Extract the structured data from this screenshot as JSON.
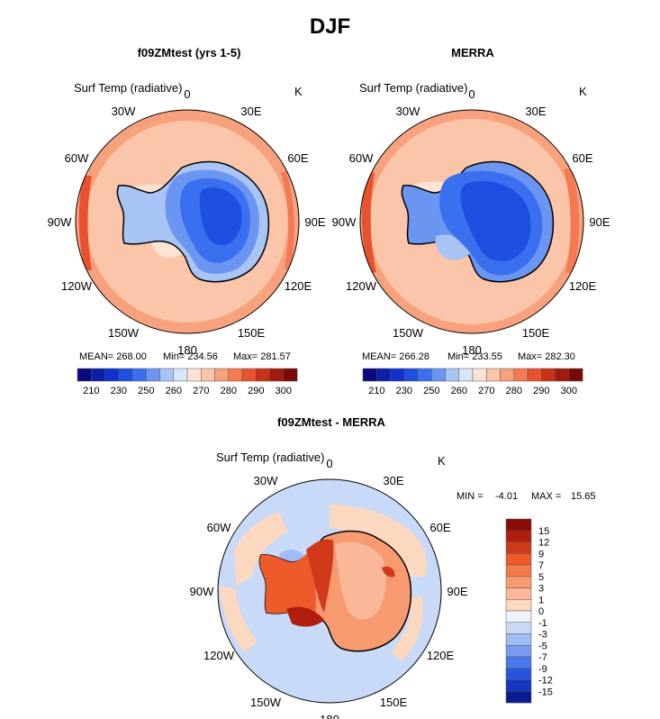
{
  "page": {
    "title": "DJF"
  },
  "panels": [
    {
      "title": "f09ZMtest (yrs 1-5)",
      "var_label": "Surf Temp (radiative)",
      "units": "K",
      "stats": {
        "mean": "MEAN= 268.00",
        "min": "Min= 234.56",
        "max": "Max= 281.57"
      }
    },
    {
      "title": "MERRA",
      "var_label": "Surf Temp (radiative)",
      "units": "K",
      "stats": {
        "mean": "MEAN= 266.28",
        "min": "Min= 233.55",
        "max": "Max= 282.30"
      }
    },
    {
      "title": "f09ZMtest - MERRA",
      "var_label": "Surf Temp (radiative)",
      "units": "K",
      "stats": {
        "min_label": "MIN =",
        "min": "-4.01",
        "max_label": "MAX =",
        "max": "15.65"
      }
    }
  ],
  "lon_labels": [
    "0",
    "30E",
    "60E",
    "90E",
    "120E",
    "150E",
    "180",
    "150W",
    "120W",
    "90W",
    "60W",
    "30W"
  ],
  "chart_data": [
    {
      "type": "heatmap",
      "title": "f09ZMtest (yrs 1-5)",
      "projection": "south-polar-stereographic",
      "variable": "Surf Temp (radiative)",
      "units": "K",
      "mean": 268.0,
      "min": 234.56,
      "max": 281.57,
      "colorbar": {
        "orientation": "horizontal",
        "tick_labels": [
          "210",
          "230",
          "250",
          "260",
          "270",
          "280",
          "290",
          "300"
        ],
        "colors": [
          "#0a0a80",
          "#0b1fa8",
          "#1230d0",
          "#1f4fe0",
          "#3a6ff0",
          "#6a96f2",
          "#a8c4f5",
          "#d8e6fa",
          "#fce4d4",
          "#fac5a8",
          "#f7a27c",
          "#f37a52",
          "#e8532e",
          "#c73218",
          "#a11a0e",
          "#7a0a06"
        ]
      }
    },
    {
      "type": "heatmap",
      "title": "MERRA",
      "projection": "south-polar-stereographic",
      "variable": "Surf Temp (radiative)",
      "units": "K",
      "mean": 266.28,
      "min": 233.55,
      "max": 282.3,
      "colorbar": {
        "orientation": "horizontal",
        "tick_labels": [
          "210",
          "230",
          "250",
          "260",
          "270",
          "280",
          "290",
          "300"
        ],
        "colors": [
          "#0a0a80",
          "#0b1fa8",
          "#1230d0",
          "#1f4fe0",
          "#3a6ff0",
          "#6a96f2",
          "#a8c4f5",
          "#d8e6fa",
          "#fce4d4",
          "#fac5a8",
          "#f7a27c",
          "#f37a52",
          "#e8532e",
          "#c73218",
          "#a11a0e",
          "#7a0a06"
        ]
      }
    },
    {
      "type": "heatmap",
      "title": "f09ZMtest - MERRA",
      "projection": "south-polar-stereographic",
      "variable": "Surf Temp (radiative)",
      "units": "K",
      "min": -4.01,
      "max": 15.65,
      "colorbar": {
        "orientation": "vertical",
        "tick_labels": [
          "15",
          "12",
          "9",
          "7",
          "5",
          "3",
          "1",
          "0",
          "-1",
          "-3",
          "-5",
          "-7",
          "-9",
          "-12",
          "-15"
        ],
        "colors": [
          "#8a0c06",
          "#b01e0e",
          "#d03a1a",
          "#ef5a2a",
          "#f47a4a",
          "#f79a70",
          "#fab898",
          "#fcd8c0",
          "#f0f4fa",
          "#c8daf8",
          "#a0bcf4",
          "#789cf0",
          "#4a78ea",
          "#2a54e0",
          "#1436c0",
          "#0a1c90"
        ]
      }
    }
  ]
}
